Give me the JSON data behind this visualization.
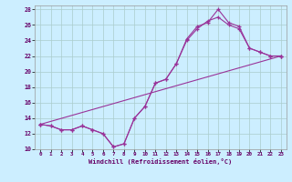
{
  "xlabel": "Windchill (Refroidissement éolien,°C)",
  "bg_color": "#cceeff",
  "line_color": "#993399",
  "xlim": [
    -0.5,
    23.5
  ],
  "ylim": [
    10,
    28.5
  ],
  "xticks": [
    0,
    1,
    2,
    3,
    4,
    5,
    6,
    7,
    8,
    9,
    10,
    11,
    12,
    13,
    14,
    15,
    16,
    17,
    18,
    19,
    20,
    21,
    22,
    23
  ],
  "yticks": [
    10,
    12,
    14,
    16,
    18,
    20,
    22,
    24,
    26,
    28
  ],
  "line1_x": [
    0,
    1,
    2,
    3,
    4,
    5,
    6,
    7,
    8,
    9,
    10,
    11,
    12,
    13,
    14,
    15,
    16,
    17,
    18,
    19,
    20,
    21,
    22,
    23
  ],
  "line1_y": [
    13.2,
    13.0,
    12.5,
    12.5,
    13.0,
    12.5,
    12.0,
    10.3,
    10.7,
    14.0,
    15.5,
    18.5,
    19.0,
    21.0,
    24.2,
    25.8,
    26.3,
    28.0,
    26.3,
    25.8,
    23.0,
    22.5,
    22.0,
    22.0
  ],
  "line2_x": [
    0,
    1,
    2,
    3,
    4,
    5,
    6,
    7,
    8,
    9,
    10,
    11,
    12,
    13,
    14,
    15,
    16,
    17,
    18,
    19,
    20,
    21,
    22,
    23
  ],
  "line2_y": [
    13.2,
    13.0,
    12.5,
    12.5,
    13.0,
    12.5,
    12.0,
    10.3,
    10.7,
    14.0,
    15.5,
    18.5,
    19.0,
    21.0,
    24.0,
    25.5,
    26.5,
    27.0,
    26.0,
    25.5,
    23.0,
    22.5,
    22.0,
    22.0
  ],
  "line3_x": [
    0,
    23
  ],
  "line3_y": [
    13.2,
    22.0
  ]
}
